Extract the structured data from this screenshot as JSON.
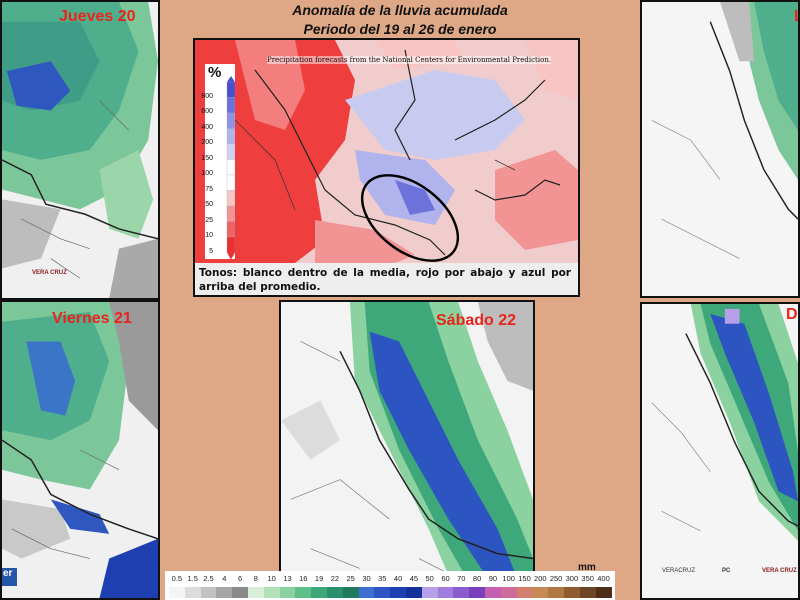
{
  "title": {
    "line1": "Anomalía de la lluvia acumulada",
    "line2": "Periodo del  19 al 26 de enero"
  },
  "days": {
    "thu": "Jueves 20",
    "fri": "Viernes 21",
    "sat": "Sábado 22",
    "sun_partial": "D",
    "mon_partial": "L"
  },
  "inset": {
    "credit": "Precipitation forecasts from the National Centers for Environmental Prediction.",
    "caption": "Tonos: blanco dentro de la media, rojo por abajo y azul por arriba del promedio.",
    "scale_symbol": "%",
    "scale_labels": [
      "800",
      "600",
      "400",
      "200",
      "150",
      "100",
      "75",
      "50",
      "25",
      "10",
      "5"
    ],
    "scale_colors": [
      "#4a4fd0",
      "#6d72db",
      "#8f93e4",
      "#b0b3ec",
      "#d0d2f4",
      "#ffffff",
      "#ffffff",
      "#f8c4c4",
      "#f39494",
      "#ee6464",
      "#e83030"
    ]
  },
  "legend": {
    "unit": "mm",
    "labels": [
      "0.5",
      "1.5",
      "2.5",
      "4",
      "6",
      "8",
      "10",
      "13",
      "16",
      "19",
      "22",
      "25",
      "30",
      "35",
      "40",
      "45",
      "50",
      "60",
      "70",
      "80",
      "90",
      "100",
      "150",
      "200",
      "250",
      "300",
      "350",
      "400"
    ],
    "colors": [
      "#f4f4f4",
      "#dcdcdc",
      "#c2c2c2",
      "#a6a6a6",
      "#8a8a8a",
      "#d8eed8",
      "#b2e0b8",
      "#8bd2a0",
      "#5fbf8a",
      "#3ea87a",
      "#2a8f6a",
      "#1f7a5e",
      "#3d6fd0",
      "#2d55c2",
      "#1e3fb0",
      "#16309a",
      "#b8a0e8",
      "#a07ddc",
      "#8a5cce",
      "#7a3fbe",
      "#c55fb2",
      "#d06a9a",
      "#d37f6e",
      "#c88a55",
      "#b07840",
      "#8f5c30",
      "#6e4426",
      "#4e2e1a"
    ]
  },
  "logos": {
    "left": "VERA CRUZ",
    "right1": "VERACRUZ",
    "right2": "PC",
    "right3": "VERA CRUZ",
    "banner": "er"
  }
}
